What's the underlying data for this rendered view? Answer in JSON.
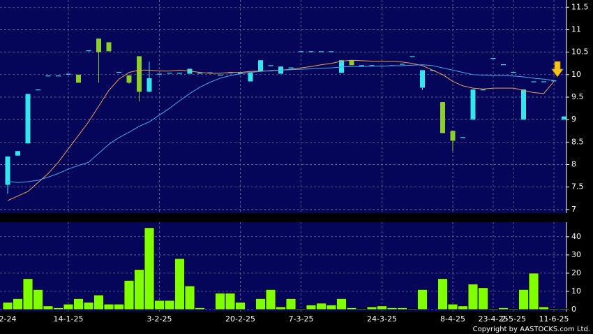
{
  "chart_data": {
    "type": "candlestick",
    "categories": [
      "2-24",
      null,
      null,
      null,
      null,
      null,
      "14-1-25",
      null,
      null,
      null,
      null,
      null,
      null,
      null,
      null,
      "3-2-25",
      null,
      null,
      null,
      null,
      null,
      null,
      null,
      "20-2-25",
      null,
      null,
      null,
      null,
      null,
      "7-3-25",
      null,
      null,
      null,
      null,
      null,
      null,
      null,
      "24-3-25",
      null,
      null,
      null,
      null,
      null,
      null,
      "8-4-25",
      null,
      null,
      null,
      "23-4-25",
      null,
      "2-5-25",
      null,
      null,
      null,
      "11-6-25",
      null
    ],
    "open": [
      7.55,
      8.2,
      8.47,
      9.67,
      9.98,
      9.98,
      10.02,
      10.0,
      10.54,
      10.8,
      10.72,
      10.06,
      9.98,
      10.41,
      9.62,
      10.02,
      10.04,
      10.04,
      10.02,
      10.04,
      10.05,
      10.0,
      10.05,
      10.04,
      9.85,
      10.07,
      10.21,
      10.02,
      10.16,
      10.52,
      10.52,
      10.52,
      10.52,
      10.04,
      10.32,
      10.21,
      10.21,
      10.2,
      10.21,
      10.24,
      10.41,
      9.71,
      10.1,
      9.39,
      8.75,
      8.61,
      9.0,
      9.67,
      10.37,
      10.23,
      10.06,
      9.0,
      9.85,
      9.85,
      9.87,
      9.0
    ],
    "high": [
      8.18,
      8.3,
      9.57,
      9.67,
      9.98,
      9.98,
      10.02,
      10.0,
      10.54,
      10.8,
      10.72,
      10.06,
      10.0,
      10.41,
      10.29,
      10.02,
      10.04,
      10.04,
      10.13,
      10.04,
      10.05,
      10.0,
      10.05,
      10.04,
      10.04,
      10.32,
      10.21,
      10.18,
      10.16,
      10.52,
      10.52,
      10.52,
      10.52,
      10.32,
      10.32,
      10.21,
      10.21,
      10.2,
      10.21,
      10.24,
      10.41,
      10.1,
      10.1,
      9.39,
      8.75,
      8.61,
      9.67,
      9.67,
      10.37,
      10.23,
      10.06,
      9.67,
      9.85,
      9.85,
      9.87,
      9.07
    ],
    "low": [
      7.35,
      8.2,
      8.47,
      9.67,
      9.98,
      9.98,
      10.02,
      9.82,
      10.54,
      9.82,
      10.52,
      10.06,
      9.8,
      9.4,
      9.62,
      10.02,
      10.04,
      10.04,
      10.02,
      10.04,
      10.05,
      10.0,
      10.05,
      10.04,
      9.85,
      10.07,
      10.21,
      10.02,
      10.16,
      10.52,
      10.52,
      10.52,
      10.52,
      10.04,
      10.21,
      10.21,
      10.21,
      10.2,
      10.21,
      10.24,
      10.41,
      9.66,
      10.1,
      8.7,
      8.3,
      8.61,
      9.0,
      9.67,
      10.37,
      10.23,
      10.06,
      9.0,
      9.85,
      9.85,
      9.87,
      9.0
    ],
    "close": [
      8.18,
      8.3,
      9.57,
      9.67,
      9.98,
      9.98,
      10.02,
      9.82,
      10.54,
      10.5,
      10.52,
      10.06,
      9.82,
      9.62,
      9.92,
      10.02,
      10.04,
      10.04,
      10.13,
      10.04,
      10.05,
      10.0,
      10.05,
      10.04,
      10.04,
      10.32,
      10.21,
      10.18,
      10.16,
      10.52,
      10.52,
      10.52,
      10.52,
      10.32,
      10.21,
      10.21,
      10.21,
      10.2,
      10.21,
      10.24,
      10.41,
      10.1,
      10.1,
      8.7,
      8.53,
      8.61,
      9.67,
      9.67,
      10.37,
      10.23,
      10.06,
      9.67,
      9.85,
      9.85,
      9.87,
      9.07
    ],
    "up_color": "#33e6ee",
    "down_color": "#8ccf2a",
    "series": [
      {
        "color": "#f0a050",
        "values": [
          7.2,
          7.3,
          7.4,
          7.6,
          7.8,
          8.05,
          8.35,
          8.65,
          8.95,
          9.3,
          9.65,
          9.9,
          10.05,
          10.1,
          10.1,
          10.08,
          10.08,
          10.1,
          10.08,
          10.05,
          10.03,
          10.03,
          10.05,
          10.05,
          10.07,
          10.08,
          10.08,
          10.1,
          10.12,
          10.15,
          10.18,
          10.22,
          10.25,
          10.3,
          10.32,
          10.31,
          10.3,
          10.3,
          10.3,
          10.28,
          10.25,
          10.2,
          10.1,
          10.0,
          9.85,
          9.75,
          9.7,
          9.68,
          9.7,
          9.7,
          9.7,
          9.65,
          9.6,
          9.58,
          9.85,
          null
        ]
      },
      {
        "color": "#4aa8f0",
        "values": [
          7.63,
          7.6,
          7.62,
          7.65,
          7.72,
          7.8,
          7.9,
          7.98,
          8.05,
          8.25,
          8.45,
          8.6,
          8.72,
          8.85,
          8.95,
          9.1,
          9.25,
          9.42,
          9.58,
          9.72,
          9.83,
          9.92,
          9.98,
          10.02,
          10.05,
          10.07,
          10.09,
          10.1,
          10.11,
          10.12,
          10.13,
          10.14,
          10.15,
          10.17,
          10.18,
          10.18,
          10.19,
          10.19,
          10.2,
          10.2,
          10.21,
          10.22,
          10.2,
          10.15,
          10.1,
          10.05,
          10.0,
          9.99,
          9.98,
          9.98,
          9.97,
          9.95,
          9.92,
          9.9,
          9.87,
          null
        ]
      }
    ],
    "ylim": [
      6.92,
      11.66
    ],
    "yticks": [
      7,
      7.5,
      8,
      8.5,
      9,
      9.5,
      10,
      10.5,
      11,
      11.5
    ],
    "volume": {
      "color": "#80ff00",
      "values": [
        4,
        6,
        17,
        11,
        2,
        1,
        3,
        6,
        4,
        8,
        3,
        3,
        16,
        22,
        45,
        5,
        5,
        28,
        13,
        1,
        0,
        9,
        9,
        4,
        0,
        6,
        11,
        1.5,
        6,
        0.5,
        2.5,
        3.5,
        2.5,
        6,
        1,
        0.5,
        1.5,
        2,
        1,
        1,
        0.5,
        11,
        0,
        17,
        3,
        2,
        14,
        12,
        0.5,
        1,
        0.5,
        11,
        20,
        1.5,
        0.5,
        0.5
      ],
      "ylim": [
        0,
        48
      ],
      "yticks": [
        0,
        10,
        20,
        30,
        40
      ]
    },
    "grid": true,
    "copyright": "Copyright by AASTOCKS.com Ltd."
  }
}
